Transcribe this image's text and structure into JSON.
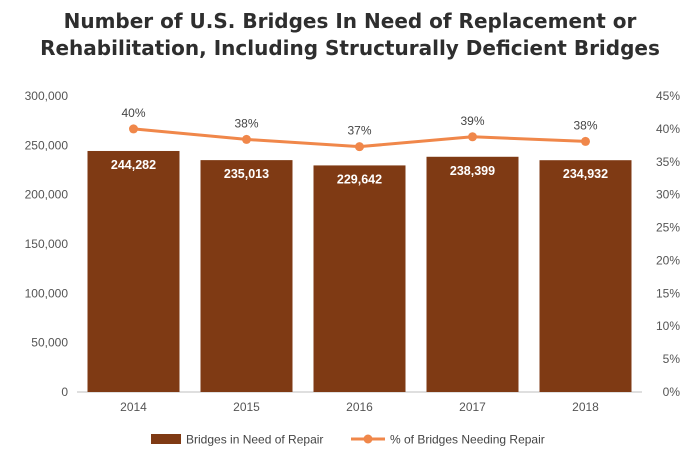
{
  "chart_data": {
    "type": "bar",
    "title_line1": "Number of U.S. Bridges In Need of Replacement or",
    "title_line2": "Rehabilitation, Including Structurally Deficient Bridges",
    "categories": [
      "2014",
      "2015",
      "2016",
      "2017",
      "2018"
    ],
    "series": [
      {
        "name": "Bridges in Need of Repair",
        "type": "bar",
        "axis": "left",
        "color": "#7f3a14",
        "values": [
          244282,
          235013,
          229642,
          238399,
          234932
        ],
        "labels": [
          "244,282",
          "235,013",
          "229,642",
          "238,399",
          "234,932"
        ]
      },
      {
        "name": "% of Bridges Needing Repair",
        "type": "line",
        "axis": "right",
        "color": "#f0874a",
        "values": [
          40,
          38.4,
          37.3,
          38.8,
          38.1
        ],
        "labels": [
          "40%",
          "38%",
          "37%",
          "39%",
          "38%"
        ]
      }
    ],
    "y_left": {
      "ylim": [
        0,
        300000
      ],
      "ticks": [
        0,
        50000,
        100000,
        150000,
        200000,
        250000,
        300000
      ],
      "tick_labels": [
        "0",
        "50,000",
        "100,000",
        "150,000",
        "200,000",
        "250,000",
        "300,000"
      ]
    },
    "y_right": {
      "ylim": [
        0,
        45
      ],
      "ticks": [
        0,
        5,
        10,
        15,
        20,
        25,
        30,
        35,
        40,
        45
      ],
      "tick_labels": [
        "0%",
        "5%",
        "10%",
        "15%",
        "20%",
        "25%",
        "30%",
        "35%",
        "40%",
        "45%"
      ]
    },
    "grid": false,
    "legend_position": "bottom"
  }
}
